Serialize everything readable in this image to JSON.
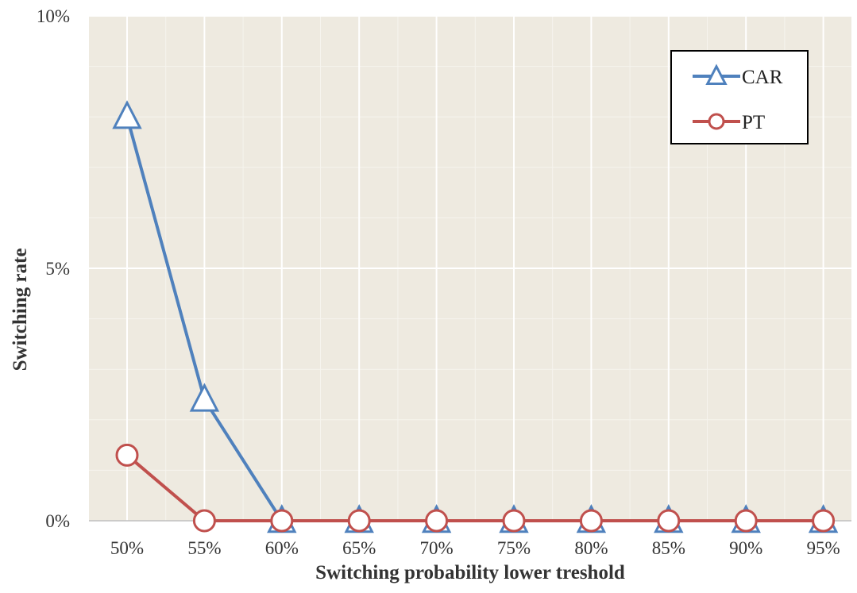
{
  "chart_data": {
    "type": "line",
    "title": "",
    "xlabel": "Switching probability lower treshold",
    "ylabel": "Switching rate",
    "categories": [
      "50%",
      "55%",
      "60%",
      "65%",
      "70%",
      "75%",
      "80%",
      "85%",
      "90%",
      "95%"
    ],
    "y_ticks": [
      "0%",
      "5%",
      "10%"
    ],
    "ylim": [
      0,
      10
    ],
    "y_unit": "%",
    "grid": true,
    "legend_position": "top-right",
    "background_color": "#eeeae0",
    "series": [
      {
        "name": "CAR",
        "marker": "triangle",
        "color": "#4f81bd",
        "values": [
          8.0,
          2.4,
          0,
          0,
          0,
          0,
          0,
          0,
          0,
          0
        ]
      },
      {
        "name": "PT",
        "marker": "circle",
        "color": "#c0504d",
        "values": [
          1.3,
          0,
          0,
          0,
          0,
          0,
          0,
          0,
          0,
          0
        ]
      }
    ]
  }
}
